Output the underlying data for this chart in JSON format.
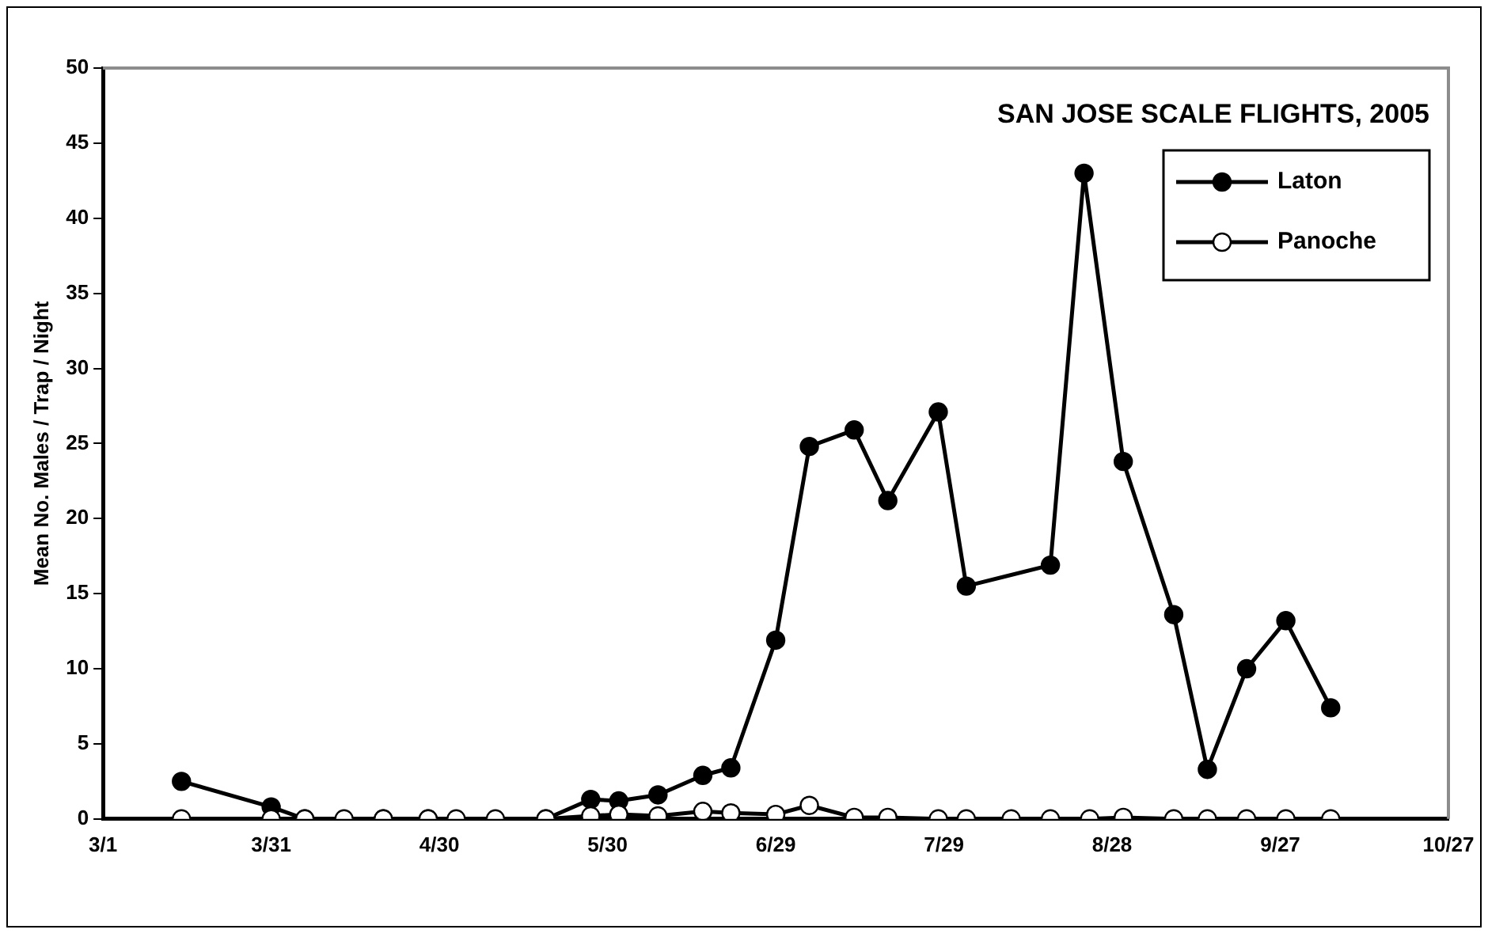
{
  "chart_data": {
    "type": "line",
    "title": "SAN JOSE SCALE FLIGHTS, 2005",
    "ylabel": "Mean No. Males / Trap / Night",
    "series": [
      {
        "name": "Laton",
        "color": "#000000",
        "marker": "circle",
        "x": [
          "--03-15",
          "--03-31",
          "--04-06",
          "--04-20",
          "--04-28",
          "--05-19",
          "--05-27",
          "--06-01",
          "--06-08",
          "--06-16",
          "--06-21",
          "--06-29",
          "--07-05",
          "--07-13",
          "--07-19",
          "--07-28",
          "--08-02",
          "--08-17",
          "--08-23",
          "--08-30",
          "--09-08",
          "--09-14",
          "--09-21",
          "--09-28",
          "--10-06"
        ],
        "values": [
          2.5,
          0.8,
          0,
          0,
          0,
          0,
          1.3,
          1.2,
          1.6,
          2.9,
          3.4,
          11.9,
          24.8,
          25.9,
          21.2,
          27.1,
          15.5,
          16.9,
          43,
          23.8,
          13.6,
          3.3,
          10,
          13.2,
          7.4
        ]
      },
      {
        "name": "Panoche",
        "color": "#000000",
        "marker": "circle",
        "x": [
          "--03-15",
          "--03-31",
          "--04-06",
          "--04-13",
          "--04-20",
          "--04-28",
          "--05-03",
          "--05-10",
          "--05-19",
          "--05-27",
          "--06-01",
          "--06-08",
          "--06-16",
          "--06-21",
          "--06-29",
          "--07-05",
          "--07-13",
          "--07-19",
          "--07-28",
          "--08-02",
          "--08-10",
          "--08-17",
          "--08-24",
          "--08-30",
          "--09-08",
          "--09-14",
          "--09-21",
          "--09-28",
          "--10-06"
        ],
        "values": [
          0,
          0,
          0,
          0,
          0,
          0,
          0,
          0,
          0,
          0.2,
          0.3,
          0.2,
          0.5,
          0.4,
          0.3,
          0.9,
          0.1,
          0.1,
          0,
          0,
          0,
          0,
          0,
          0.1,
          0,
          0,
          0,
          0,
          0
        ]
      }
    ],
    "xlim": [
      "--03-01",
      "--10-27"
    ],
    "xticks": [
      {
        "value": "--03-01",
        "label": "3/1"
      },
      {
        "value": "--03-31",
        "label": "3/31"
      },
      {
        "value": "--04-30",
        "label": "4/30"
      },
      {
        "value": "--05-30",
        "label": "5/30"
      },
      {
        "value": "--06-29",
        "label": "6/29"
      },
      {
        "value": "--07-29",
        "label": "7/29"
      },
      {
        "value": "--08-28",
        "label": "8/28"
      },
      {
        "value": "--09-27",
        "label": "9/27"
      },
      {
        "value": "--10-27",
        "label": "10/27"
      }
    ],
    "ylim": [
      0,
      50
    ],
    "yticks": [
      0,
      5,
      10,
      15,
      20,
      25,
      30,
      35,
      40,
      45,
      50
    ],
    "grid": false,
    "legend": "top right",
    "line_style": "solid"
  }
}
